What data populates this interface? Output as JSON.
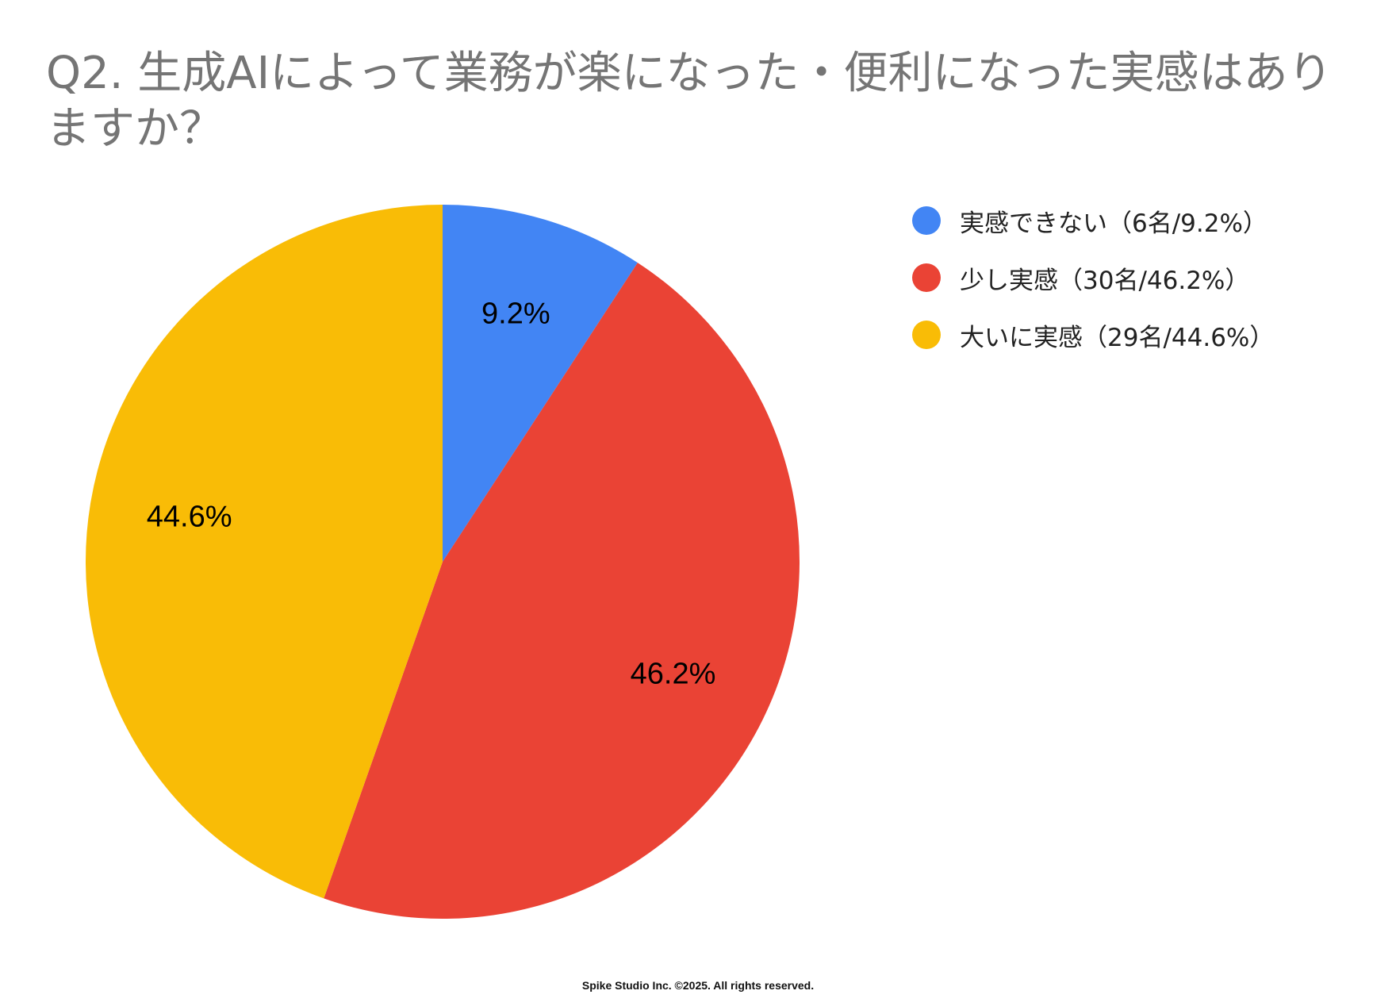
{
  "chart_data": {
    "type": "pie",
    "title": "Q2. 生成AIによって業務が楽になった・便利になった実感はありますか？",
    "slices": [
      {
        "legend": "実感できない（6名/9.2%）",
        "value": 9.2,
        "label": "9.2%",
        "color": "#4285F4"
      },
      {
        "legend": "少し実感（30名/46.2%）",
        "value": 46.2,
        "label": "46.2%",
        "color": "#EA4335"
      },
      {
        "legend": "大いに実感（29名/44.6%）",
        "value": 44.6,
        "label": "44.6%",
        "color": "#F9BC06"
      }
    ],
    "legend_position": "right-top"
  },
  "footer": "Spike Studio Inc. ©2025. All rights reserved."
}
